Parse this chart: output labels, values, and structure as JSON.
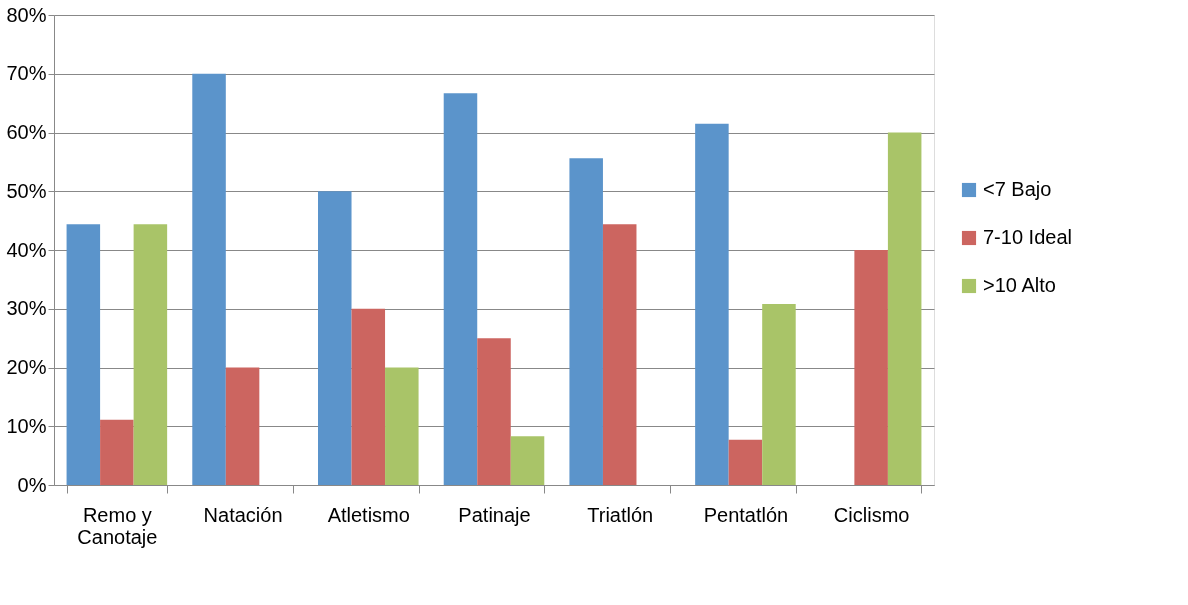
{
  "chart_data": {
    "type": "bar",
    "categories": [
      "Remo y Canotaje",
      "Natación",
      "Atletismo",
      "Patinaje",
      "Triatlón",
      "Pentatlón",
      "Ciclismo"
    ],
    "series": [
      {
        "name": "<7 Bajo",
        "color": "#5b94cb",
        "values": [
          44.4,
          70,
          50,
          66.7,
          55.6,
          61.5,
          0
        ]
      },
      {
        "name": "7-10 Ideal",
        "color": "#cc6560",
        "values": [
          11.1,
          20,
          30,
          25,
          44.4,
          7.7,
          40
        ]
      },
      {
        "name": ">10 Alto",
        "color": "#a9c468",
        "values": [
          44.4,
          0,
          20,
          8.3,
          0,
          30.8,
          60
        ]
      }
    ],
    "ylim": [
      0,
      80
    ],
    "yticks": [
      {
        "value": 0,
        "label": "0%"
      },
      {
        "value": 10,
        "label": "10%"
      },
      {
        "value": 20,
        "label": "20%"
      },
      {
        "value": 30,
        "label": "30%"
      },
      {
        "value": 40,
        "label": "40%"
      },
      {
        "value": 50,
        "label": "50%"
      },
      {
        "value": 60,
        "label": "60%"
      },
      {
        "value": 70,
        "label": "70%"
      },
      {
        "value": 80,
        "label": "80%"
      }
    ],
    "grid": "y",
    "legend": "right"
  }
}
